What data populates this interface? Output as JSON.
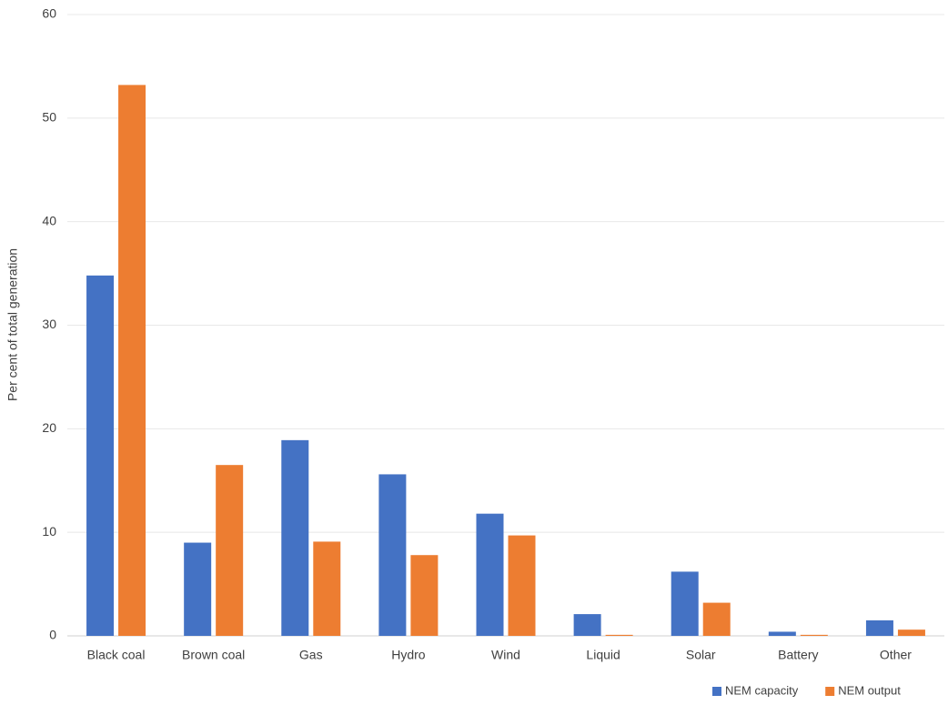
{
  "chart_data": {
    "type": "bar",
    "y_label": "Per cent of total generation",
    "categories": [
      "Black coal",
      "Brown coal",
      "Gas",
      "Hydro",
      "Wind",
      "Liquid",
      "Solar",
      "Battery",
      "Other"
    ],
    "series": [
      {
        "name": "NEM capacity",
        "color": "#4472c4",
        "values": [
          34.8,
          9.0,
          18.9,
          15.6,
          11.8,
          2.1,
          6.2,
          0.4,
          1.5
        ]
      },
      {
        "name": "NEM output",
        "color": "#ed7d31",
        "values": [
          53.2,
          16.5,
          9.1,
          7.8,
          9.7,
          0.1,
          3.2,
          0.1,
          0.6
        ]
      }
    ],
    "ylim": [
      0,
      60
    ],
    "yticks": [
      0,
      10,
      20,
      30,
      40,
      50,
      60
    ],
    "grid": true,
    "legend": "bottom-right"
  }
}
